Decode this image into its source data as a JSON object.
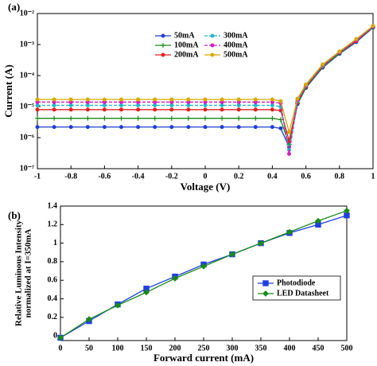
{
  "chart_data": [
    {
      "type": "line",
      "panel_label": "(a)",
      "x_label": "Voltage (V)",
      "y_label": "Current (A)",
      "log_y": true,
      "xlim": [
        -1,
        1
      ],
      "xticks": [
        -1,
        -0.8,
        -0.6,
        -0.4,
        -0.2,
        0,
        0.2,
        0.4,
        0.6,
        0.8,
        1
      ],
      "ylim": [
        1e-07,
        0.01
      ],
      "yticks": [
        {
          "value": 1e-07,
          "label": "10⁻⁷"
        },
        {
          "value": 1e-06,
          "label": "10⁻⁶"
        },
        {
          "value": 1e-05,
          "label": "10⁻⁵"
        },
        {
          "value": 0.0001,
          "label": "10⁻⁴"
        },
        {
          "value": 0.001,
          "label": "10⁻³"
        },
        {
          "value": 0.01,
          "label": "10⁻²"
        }
      ],
      "legend": "top-center-columns",
      "x": [
        -1,
        -0.9,
        -0.8,
        -0.7,
        -0.6,
        -0.5,
        -0.4,
        -0.3,
        -0.2,
        -0.1,
        0,
        0.1,
        0.2,
        0.3,
        0.4,
        0.45,
        0.5,
        0.55,
        0.6,
        0.7,
        0.8,
        0.9,
        1
      ],
      "series": [
        {
          "name": "50mA",
          "color": "#1f3fd0",
          "dash": false,
          "marker": "circle",
          "values": [
            2.2e-06,
            2.2e-06,
            2.2e-06,
            2.2e-06,
            2.2e-06,
            2.2e-06,
            2.2e-06,
            2.2e-06,
            2.2e-06,
            2.2e-06,
            2.2e-06,
            2.2e-06,
            2.2e-06,
            2.2e-06,
            2.2e-06,
            2e-06,
            5e-07,
            1.2e-05,
            4e-05,
            0.00018,
            0.0005,
            0.0012,
            0.0035
          ]
        },
        {
          "name": "100mA",
          "color": "#1a8a1a",
          "dash": false,
          "marker": "plus",
          "values": [
            4.2e-06,
            4.2e-06,
            4.2e-06,
            4.2e-06,
            4.2e-06,
            4.2e-06,
            4.2e-06,
            4.2e-06,
            4.2e-06,
            4.2e-06,
            4.2e-06,
            4.2e-06,
            4.2e-06,
            4.2e-06,
            4.2e-06,
            3.8e-06,
            6e-07,
            1.3e-05,
            4.2e-05,
            0.00019,
            0.00052,
            0.0013,
            0.0036
          ]
        },
        {
          "name": "200mA",
          "color": "#e02020",
          "dash": false,
          "marker": "circle",
          "values": [
            8e-06,
            8e-06,
            8e-06,
            8e-06,
            8e-06,
            8e-06,
            8e-06,
            8e-06,
            8e-06,
            8e-06,
            8e-06,
            8e-06,
            8e-06,
            8e-06,
            8e-06,
            7.5e-06,
            8e-07,
            1.4e-05,
            4.5e-05,
            0.0002,
            0.00055,
            0.0013,
            0.0037
          ]
        },
        {
          "name": "300mA",
          "color": "#20b8c8",
          "dash": true,
          "marker": "circle",
          "values": [
            1.1e-05,
            1.1e-05,
            1.1e-05,
            1.1e-05,
            1.1e-05,
            1.1e-05,
            1.1e-05,
            1.1e-05,
            1.1e-05,
            1.1e-05,
            1.1e-05,
            1.1e-05,
            1.1e-05,
            1.1e-05,
            1.1e-05,
            1e-05,
            4e-07,
            1.5e-05,
            4.8e-05,
            0.00021,
            0.00057,
            0.0014,
            0.0038
          ]
        },
        {
          "name": "400mA",
          "color": "#d020c0",
          "dash": true,
          "marker": "circle",
          "values": [
            1.4e-05,
            1.4e-05,
            1.4e-05,
            1.4e-05,
            1.4e-05,
            1.4e-05,
            1.4e-05,
            1.4e-05,
            1.4e-05,
            1.4e-05,
            1.4e-05,
            1.4e-05,
            1.4e-05,
            1.4e-05,
            1.4e-05,
            1.3e-05,
            3e-07,
            1.6e-05,
            5e-05,
            0.00022,
            0.00058,
            0.0014,
            0.0038
          ]
        },
        {
          "name": "500mA",
          "color": "#d8a800",
          "dash": false,
          "marker": "circle",
          "values": [
            1.7e-05,
            1.7e-05,
            1.7e-05,
            1.7e-05,
            1.7e-05,
            1.7e-05,
            1.7e-05,
            1.7e-05,
            1.7e-05,
            1.7e-05,
            1.7e-05,
            1.7e-05,
            1.7e-05,
            1.7e-05,
            1.7e-05,
            1.5e-05,
            1.5e-06,
            1.8e-05,
            5.2e-05,
            0.00023,
            0.0006,
            0.0015,
            0.004
          ]
        }
      ]
    },
    {
      "type": "line",
      "panel_label": "(b)",
      "x_label": "Forward current (mA)",
      "y_label": [
        "Relative Luminous Intensity",
        "normalized at I=350mA"
      ],
      "log_y": false,
      "xlim": [
        0,
        500
      ],
      "xticks": [
        0,
        50,
        100,
        150,
        200,
        250,
        300,
        350,
        400,
        450,
        500
      ],
      "ylim": [
        -0.05,
        1.4
      ],
      "yticks": [
        0,
        0.2,
        0.4,
        0.6,
        0.8,
        1,
        1.2,
        1.4
      ],
      "legend": "lower-right-box",
      "x": [
        0,
        50,
        100,
        150,
        200,
        250,
        300,
        350,
        400,
        450,
        500
      ],
      "series": [
        {
          "name": "Photodiode",
          "color": "#1f3fe0",
          "dash": false,
          "marker": "square",
          "values": [
            -0.02,
            0.16,
            0.34,
            0.51,
            0.64,
            0.77,
            0.88,
            1,
            1.11,
            1.2,
            1.3
          ]
        },
        {
          "name": "LED Datasheet",
          "color": "#1a8a1a",
          "dash": false,
          "marker": "diamond",
          "values": [
            -0.02,
            0.18,
            0.33,
            0.47,
            0.62,
            0.75,
            0.88,
            1,
            1.12,
            1.24,
            1.35
          ]
        }
      ]
    }
  ]
}
